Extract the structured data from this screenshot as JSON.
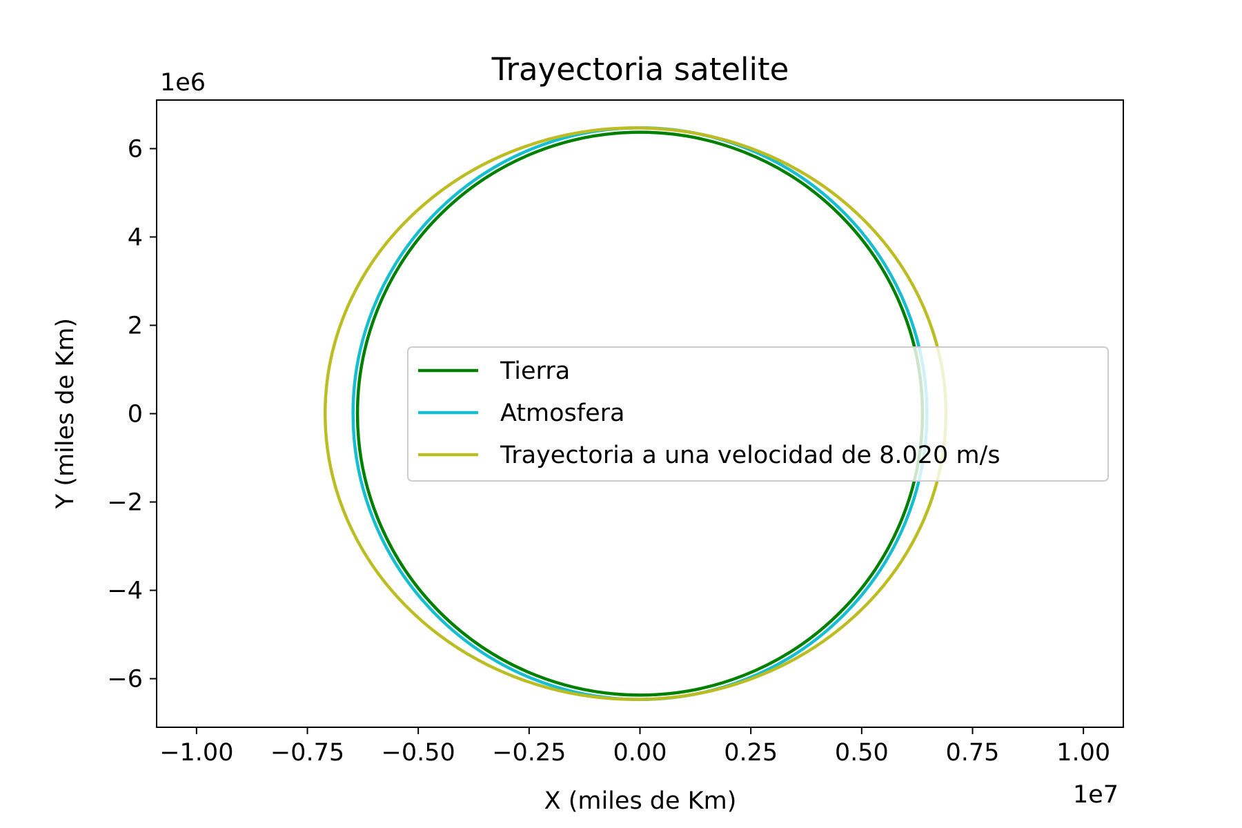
{
  "chart_data": {
    "type": "line",
    "title": "Trayectoria satelite",
    "xlabel": "X (miles de Km)",
    "ylabel": "Y (miles de Km)",
    "x_offset_label": "1e7",
    "y_offset_label": "1e6",
    "xlim": [
      -10900000.0,
      10900000.0
    ],
    "ylim": [
      -7100000.0,
      7100000.0
    ],
    "x_ticks": [
      -10000000.0,
      -7500000.0,
      -5000000.0,
      -2500000.0,
      0,
      2500000.0,
      5000000.0,
      7500000.0,
      10000000.0
    ],
    "x_tick_labels": [
      "−1.00",
      "−0.75",
      "−0.50",
      "−0.25",
      "0.00",
      "0.25",
      "0.50",
      "0.75",
      "1.00"
    ],
    "y_ticks": [
      -6000000.0,
      -4000000.0,
      -2000000.0,
      0,
      2000000.0,
      4000000.0,
      6000000.0
    ],
    "y_tick_labels": [
      "−6",
      "−4",
      "−2",
      "0",
      "2",
      "4",
      "6"
    ],
    "grid": false,
    "legend_position": "center-right",
    "series": [
      {
        "name": "Tierra",
        "color": "#008000",
        "shape": "circle",
        "center": [
          0,
          0
        ],
        "radius_x": 6371000.0,
        "radius_y": 6371000.0
      },
      {
        "name": "Atmosfera",
        "color": "#17becf",
        "shape": "circle",
        "center": [
          0,
          0
        ],
        "radius_x": 6471000.0,
        "radius_y": 6471000.0
      },
      {
        "name": "Trayectoria a una velocidad de 8.020 m/s",
        "color": "#bcbd22",
        "shape": "ellipse",
        "center": [
          -100000.0,
          0
        ],
        "radius_x": 7000000.0,
        "radius_y": 6470000.0
      }
    ]
  }
}
